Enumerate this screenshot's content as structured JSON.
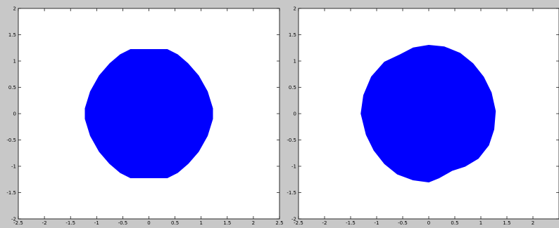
{
  "background_color": "#c8c8c8",
  "axes_background": "#ffffff",
  "fill_color": "#0000ff",
  "chart_data": [
    {
      "type": "area",
      "title": "",
      "xlabel": "",
      "ylabel": "",
      "xlim": [
        -2.5,
        2.5
      ],
      "ylim": [
        -2,
        2
      ],
      "xticks": [
        -2.5,
        -2,
        -1.5,
        -1,
        -0.5,
        0,
        0.5,
        1,
        1.5,
        2,
        2.5
      ],
      "xtick_labels": [
        "-2.5",
        "-2",
        "-1.5",
        "-1",
        "-0.5",
        "0",
        "0.5",
        "1",
        "1.5",
        "2",
        "2.5"
      ],
      "yticks": [
        -2,
        -1.5,
        -1,
        -0.5,
        0,
        0.5,
        1,
        1.5,
        2
      ],
      "ytick_labels": [
        "-2",
        "-1.5",
        "-1",
        "-0.5",
        "0",
        "0.5",
        "1",
        "1.5",
        "2"
      ],
      "grid": false,
      "shape": {
        "color": "#0000ff",
        "boundary": [
          [
            0.35,
            1.22
          ],
          [
            0.55,
            1.12
          ],
          [
            0.75,
            0.95
          ],
          [
            0.95,
            0.72
          ],
          [
            1.12,
            0.42
          ],
          [
            1.22,
            0.1
          ],
          [
            1.22,
            -0.1
          ],
          [
            1.12,
            -0.42
          ],
          [
            0.95,
            -0.72
          ],
          [
            0.75,
            -0.95
          ],
          [
            0.55,
            -1.12
          ],
          [
            0.35,
            -1.22
          ],
          [
            -0.35,
            -1.22
          ],
          [
            -0.55,
            -1.12
          ],
          [
            -0.75,
            -0.95
          ],
          [
            -0.95,
            -0.72
          ],
          [
            -1.12,
            -0.42
          ],
          [
            -1.22,
            -0.1
          ],
          [
            -1.22,
            0.1
          ],
          [
            -1.12,
            0.42
          ],
          [
            -0.95,
            0.72
          ],
          [
            -0.75,
            0.95
          ],
          [
            -0.55,
            1.12
          ],
          [
            -0.35,
            1.22
          ]
        ]
      }
    },
    {
      "type": "area",
      "title": "",
      "xlabel": "",
      "ylabel": "",
      "xlim": [
        -2.5,
        2.5
      ],
      "ylim": [
        -2,
        2
      ],
      "xticks": [
        -2.5,
        -2,
        -1.5,
        -1,
        -0.5,
        0,
        0.5,
        1,
        1.5,
        2
      ],
      "xtick_labels": [
        "-2.5",
        "-2",
        "-1.5",
        "-1",
        "-0.5",
        "0",
        "0.5",
        "1",
        "1.5",
        "2"
      ],
      "yticks": [
        -2,
        -1.5,
        -1,
        -0.5,
        0,
        0.5,
        1,
        1.5,
        2
      ],
      "ytick_labels": [
        "-2",
        "-1.5",
        "-1",
        "-0.5",
        "0",
        "0.5",
        "1",
        "1.5",
        "2"
      ],
      "grid": false,
      "shape": {
        "color": "#0000ff",
        "boundary": [
          [
            0,
            1.3
          ],
          [
            0.3,
            1.27
          ],
          [
            0.6,
            1.15
          ],
          [
            0.85,
            0.95
          ],
          [
            1.05,
            0.7
          ],
          [
            1.2,
            0.4
          ],
          [
            1.28,
            0.05
          ],
          [
            1.25,
            -0.3
          ],
          [
            1.15,
            -0.6
          ],
          [
            0.95,
            -0.85
          ],
          [
            0.7,
            -1.0
          ],
          [
            0.45,
            -1.08
          ],
          [
            0.2,
            -1.22
          ],
          [
            0,
            -1.3
          ],
          [
            -0.3,
            -1.26
          ],
          [
            -0.6,
            -1.15
          ],
          [
            -0.85,
            -0.95
          ],
          [
            -1.05,
            -0.7
          ],
          [
            -1.2,
            -0.4
          ],
          [
            -1.3,
            0
          ],
          [
            -1.25,
            0.35
          ],
          [
            -1.1,
            0.7
          ],
          [
            -0.85,
            0.98
          ],
          [
            -0.55,
            1.12
          ],
          [
            -0.3,
            1.25
          ]
        ]
      }
    }
  ]
}
